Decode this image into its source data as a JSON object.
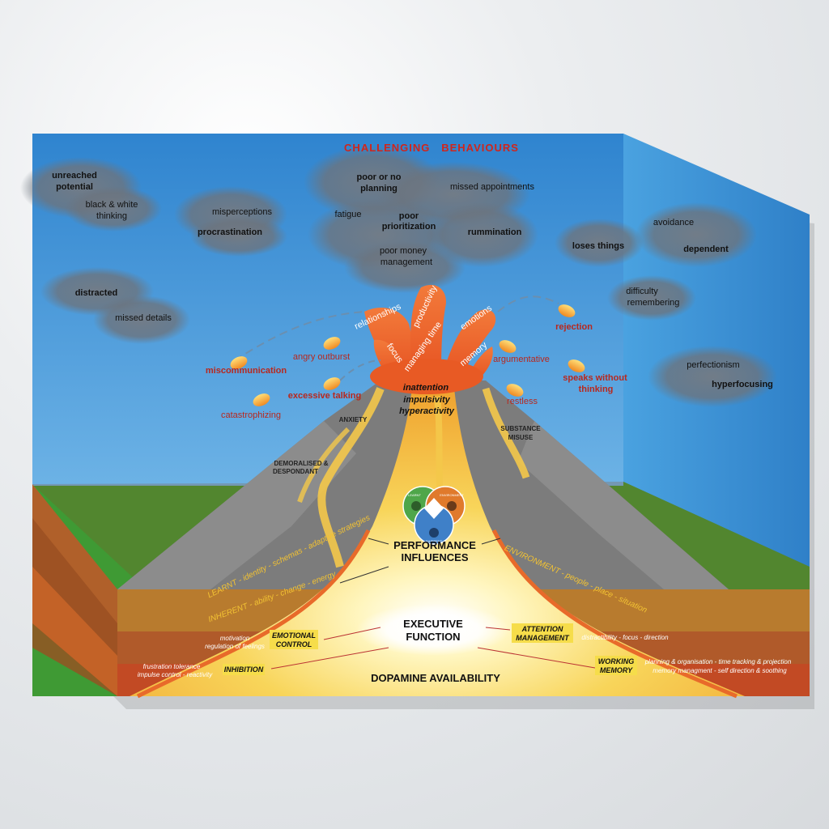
{
  "title": "CHALLENGING   BEHAVIOURS",
  "clouds": {
    "unreached": "unreached",
    "potential": "potential",
    "black_white_1": "black & white",
    "black_white_2": "thinking",
    "misperceptions": "misperceptions",
    "procrastination": "procrastination",
    "poor_or_no": "poor or no",
    "planning": "planning",
    "missed_appointments": "missed appointments",
    "fatigue": "fatigue",
    "poor": "poor",
    "prioritization": "prioritization",
    "rummination": "rummination",
    "poor_money": "poor money",
    "management": "management",
    "loses_things": "loses things",
    "avoidance": "avoidance",
    "dependent": "dependent",
    "distracted": "distracted",
    "missed_details": "missed details",
    "difficulty": "difficulty",
    "remembering": "remembering",
    "perfectionism": "perfectionism",
    "hyperfocusing": "hyperfocusing"
  },
  "eruption": {
    "relationships": "relationships",
    "productivity": "productivity",
    "emotions": "emotions",
    "focus": "focus",
    "managing_time": "managing time",
    "memory": "memory",
    "inattention": "inattention",
    "impulsivity": "impulsivity",
    "hyperactivity": "hyperactivity"
  },
  "behaviours": {
    "rejection": "rejection",
    "angry_outburst": "angry outburst",
    "argumentative": "argumentative",
    "miscommunication": "miscommunication",
    "speaks_1": "speaks without",
    "speaks_2": "thinking",
    "excessive_talking": "excessive talking",
    "restless": "restless",
    "catastrophizing": "catastrophizing"
  },
  "flanks": {
    "anxiety": "ANXIETY",
    "substance_1": "SUBSTANCE",
    "substance_2": "MISUSE",
    "demoralised_1": "DEMORALISED &",
    "demoralised_2": "DESPONDANT"
  },
  "venn": {
    "learnt": "LEARNT",
    "environment": "ENVIRONMENT",
    "inherent": "INHERENT"
  },
  "layers": {
    "performance_1": "PERFORMANCE",
    "performance_2": "INFLUENCES",
    "environment_line": "ENVIRONMENT - people - place - situation",
    "learnt_line": "LEARNT - identity - schemas - adaptive strategies",
    "inherent_line": "INHERENT - ability - change - energy",
    "executive_1": "EXECUTIVE",
    "executive_2": "FUNCTION",
    "emotional_control_1": "EMOTIONAL",
    "emotional_control_2": "CONTROL",
    "emotional_desc_1": "motivation",
    "emotional_desc_2": "regulation of feelings",
    "attention_1": "ATTENTION",
    "attention_2": "MANAGEMENT",
    "attention_desc": "distractibility - focus - direction",
    "inhibition": "INHIBITION",
    "inhibition_desc_1": "frustration tolerance",
    "inhibition_desc_2": "impulse control - reactivity",
    "working_1": "WORKING",
    "working_2": "MEMORY",
    "working_desc_1": "planning & organisation - time tracking & projection",
    "working_desc_2": "memory managment - self direction & soothing",
    "dopamine": "DOPAMINE AVAILABILITY"
  },
  "colors": {
    "sky": "#3d8fd3",
    "grass": "#3f9a34",
    "mountain": "#7a7a7a",
    "magma": "#f7c948",
    "lava": "#e8642c",
    "earth": "#a8602a",
    "behaviour_red": "#b8281e"
  }
}
